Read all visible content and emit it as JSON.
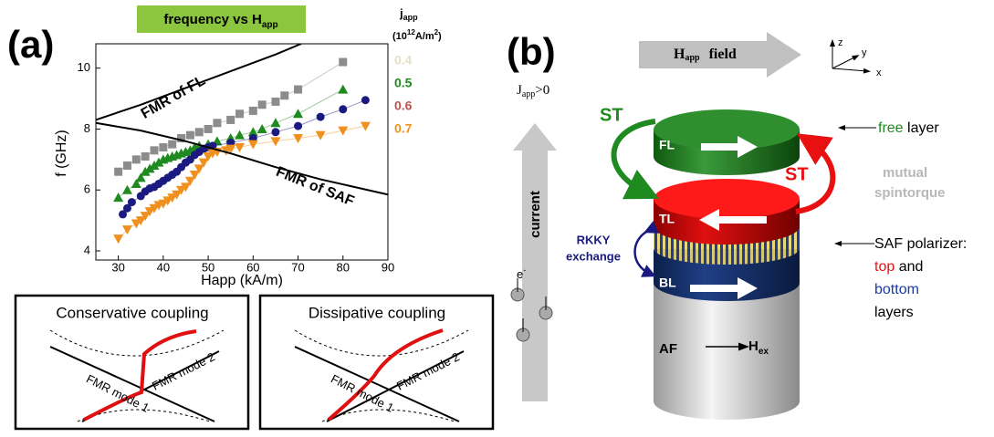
{
  "chart_data": {
    "type": "scatter",
    "panel_label": "(a)",
    "title": [
      "frequency vs H",
      "app"
    ],
    "x_label": "Happ (kA/m)",
    "y_label": "f (GHz)",
    "xlim": [
      25,
      90
    ],
    "ylim": [
      3.7,
      10.8
    ],
    "xticks": [
      30,
      40,
      50,
      60,
      70,
      80,
      90
    ],
    "yticks": [
      4,
      6,
      8,
      10
    ],
    "legend_title": [
      "j",
      "app"
    ],
    "legend_unit": [
      "(10",
      "12",
      "A/m",
      "2",
      ")"
    ],
    "series": [
      {
        "name": "0.4",
        "color": "#8c8c8c",
        "legend_color": "#e6e0c6",
        "marker": "square",
        "x": [
          30,
          32,
          34,
          36,
          38,
          40,
          42,
          44,
          46,
          48,
          50,
          52,
          55,
          57,
          60,
          62,
          65,
          67,
          70,
          80
        ],
        "values": [
          6.6,
          6.8,
          7.0,
          7.1,
          7.3,
          7.4,
          7.5,
          7.7,
          7.8,
          7.9,
          8.0,
          8.2,
          8.3,
          8.5,
          8.6,
          8.8,
          8.9,
          9.1,
          9.3,
          10.2
        ]
      },
      {
        "name": "0.5",
        "color": "#1f8a1f",
        "legend_color": "#1f8a1f",
        "marker": "triangle",
        "x": [
          30,
          32,
          34,
          35,
          36,
          37,
          38,
          39,
          40,
          41,
          42,
          43,
          44,
          45,
          46,
          47,
          48,
          50,
          52,
          55,
          57,
          60,
          62,
          65,
          70,
          80
        ],
        "values": [
          5.75,
          6.0,
          6.2,
          6.4,
          6.6,
          6.7,
          6.8,
          6.9,
          7.0,
          7.05,
          7.1,
          7.15,
          7.2,
          7.25,
          7.3,
          7.4,
          7.45,
          7.5,
          7.6,
          7.7,
          7.8,
          7.9,
          8.0,
          8.2,
          8.5,
          9.3
        ]
      },
      {
        "name": "0.6",
        "color": "#1a1a80",
        "legend_color": "#c0504d",
        "marker": "circle",
        "x": [
          31,
          32,
          33,
          35,
          36,
          37,
          38,
          39,
          40,
          41,
          42,
          43,
          44,
          45,
          46,
          47,
          48,
          49,
          50,
          51,
          55,
          60,
          65,
          70,
          75,
          80,
          85
        ],
        "values": [
          5.2,
          5.4,
          5.6,
          5.8,
          5.95,
          6.05,
          6.1,
          6.2,
          6.3,
          6.4,
          6.5,
          6.6,
          6.75,
          6.9,
          7.0,
          7.15,
          7.25,
          7.35,
          7.4,
          7.45,
          7.55,
          7.7,
          7.9,
          8.1,
          8.4,
          8.65,
          8.95
        ]
      },
      {
        "name": "0.7",
        "color": "#f0901e",
        "legend_color": "#f0901e",
        "marker": "triangle-down",
        "x": [
          30,
          32,
          34,
          35,
          36,
          37,
          38,
          39,
          40,
          41,
          42,
          43,
          44,
          45,
          46,
          47,
          48,
          49,
          50,
          51,
          52,
          54,
          55,
          57,
          60,
          65,
          70,
          75,
          80,
          85
        ],
        "values": [
          4.4,
          4.7,
          4.9,
          5.0,
          5.15,
          5.3,
          5.4,
          5.5,
          5.55,
          5.65,
          5.75,
          5.85,
          6.0,
          6.1,
          6.3,
          6.5,
          6.7,
          6.9,
          7.1,
          7.2,
          7.25,
          7.3,
          7.35,
          7.4,
          7.5,
          7.6,
          7.7,
          7.8,
          7.95,
          8.1
        ]
      }
    ],
    "curves": [
      {
        "label": "FMR of FL",
        "x": [
          25,
          35,
          45,
          55,
          65,
          70.7
        ],
        "values": [
          8.3,
          8.8,
          9.35,
          9.9,
          10.45,
          10.8
        ]
      },
      {
        "label": "FMR of SAF",
        "x": [
          25,
          35,
          45,
          55,
          65,
          75,
          90
        ],
        "values": [
          8.2,
          7.95,
          7.6,
          7.2,
          6.75,
          6.35,
          5.85
        ]
      }
    ]
  },
  "insets": [
    {
      "title": "Conservative coupling",
      "mode_1": "FMR mode 1",
      "mode_2": "FMR mode 2"
    },
    {
      "title": "Dissipative coupling",
      "mode_1": "FMR mode 1",
      "mode_2": "FMR mode 2"
    }
  ],
  "panel_b": {
    "label": "(b)",
    "field": [
      "H",
      "app",
      "field"
    ],
    "axes": [
      "z",
      "y",
      "x"
    ],
    "current_label": [
      "J",
      "app",
      ">0"
    ],
    "current": "current",
    "electron": [
      "e",
      "-"
    ],
    "st_left": "ST",
    "st_right": "ST",
    "layers": {
      "fl": "FL",
      "tl": "TL",
      "bl": "BL",
      "af": "AF",
      "hex": [
        "H",
        "ex"
      ]
    },
    "rkky": [
      "RKKY",
      "exchange"
    ],
    "free_layer": [
      "free",
      " layer"
    ],
    "mutual": [
      "mutual",
      "spintorque"
    ],
    "saf": [
      "SAF polarizer:",
      "top",
      " and",
      "bottom",
      "layers"
    ]
  }
}
